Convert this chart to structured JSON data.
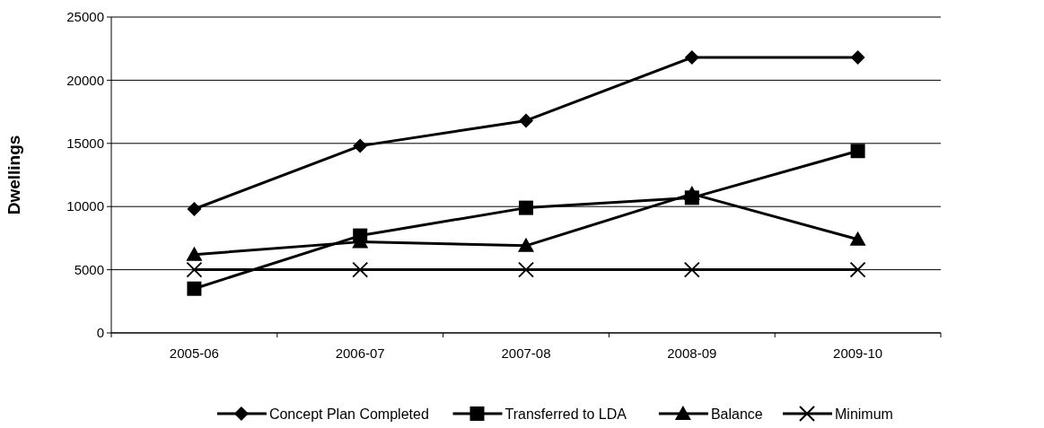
{
  "chart_data": {
    "type": "line",
    "ylabel": "Dwellings",
    "categories": [
      "2005-06",
      "2006-07",
      "2007-08",
      "2008-09",
      "2009-10"
    ],
    "series": [
      {
        "name": "Concept Plan Completed",
        "color": "#000000",
        "marker": "diamond",
        "values": [
          9800,
          14800,
          16800,
          21800,
          21800
        ]
      },
      {
        "name": "Transferred to LDA",
        "color": "#000000",
        "marker": "square",
        "values": [
          3500,
          7700,
          9900,
          10700,
          14400
        ]
      },
      {
        "name": "Balance",
        "color": "#000000",
        "marker": "triangle",
        "values": [
          6200,
          7200,
          6900,
          11000,
          7400
        ]
      },
      {
        "name": "Minimum",
        "color": "#000000",
        "marker": "cross",
        "values": [
          5000,
          5000,
          5000,
          5000,
          5000
        ]
      }
    ],
    "ylim": [
      0,
      25000
    ],
    "yticks": [
      0,
      5000,
      10000,
      15000,
      20000,
      25000
    ],
    "grid": "y",
    "legend": "bottom"
  }
}
